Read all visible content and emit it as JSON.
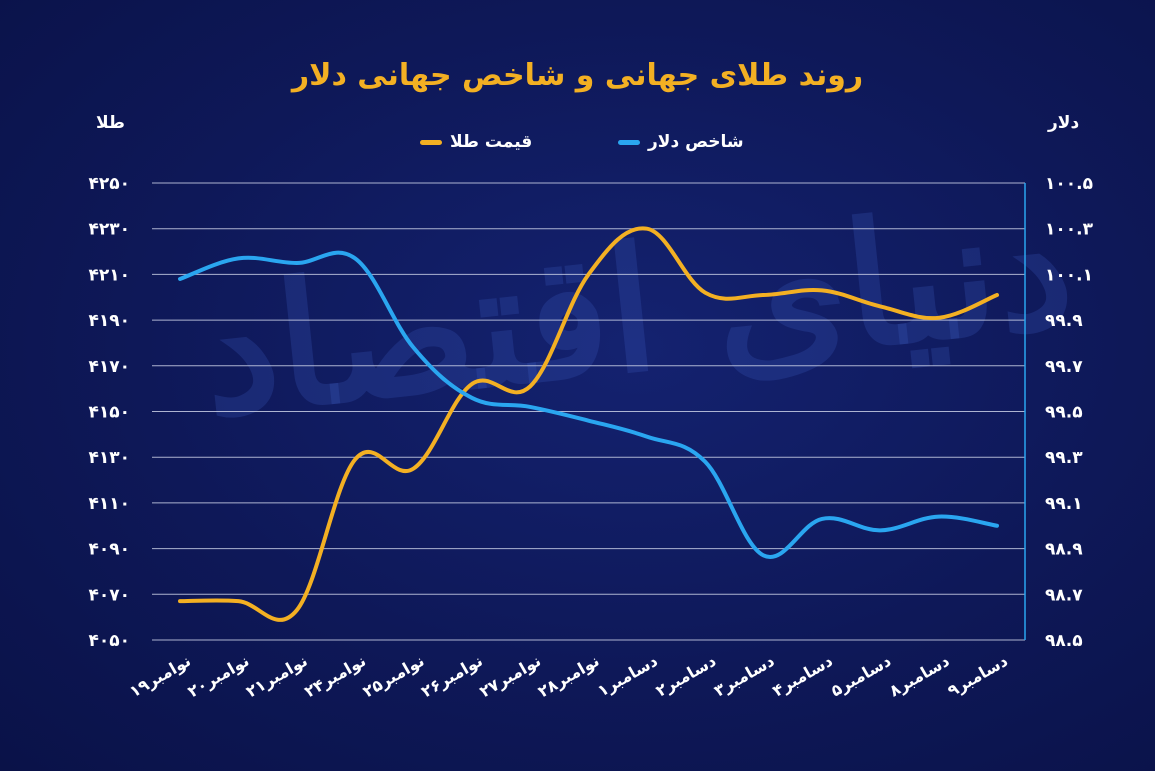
{
  "chart_data": {
    "type": "line",
    "title": "روند طلای جهانی و شاخص جهانی دلار",
    "left_axis_label": "طلا",
    "right_axis_label": "دلار",
    "categories": [
      "۱۹نوامبر",
      "۲۰نوامبر",
      "۲۱نوامبر",
      "۲۴نوامبر",
      "۲۵نوامبر",
      "۲۶نوامبر",
      "۲۷نوامبر",
      "۲۸نوامبر",
      "۱دسامبر",
      "۲دسامبر",
      "۳دسامبر",
      "۴دسامبر",
      "۵دسامبر",
      "۸دسامبر",
      "۹دسامبر"
    ],
    "left_axis": {
      "ylim": [
        4050,
        4250
      ],
      "ticks": [
        4050,
        4070,
        4090,
        4110,
        4130,
        4150,
        4170,
        4190,
        4210,
        4230,
        4250
      ],
      "tick_labels": [
        "۴۰۵۰",
        "۴۰۷۰",
        "۴۰۹۰",
        "۴۱۱۰",
        "۴۱۳۰",
        "۴۱۵۰",
        "۴۱۷۰",
        "۴۱۹۰",
        "۴۲۱۰",
        "۴۲۳۰",
        "۴۲۵۰"
      ]
    },
    "right_axis": {
      "ylim": [
        98.5,
        100.5
      ],
      "ticks": [
        98.5,
        98.7,
        98.9,
        99.1,
        99.3,
        99.5,
        99.7,
        99.9,
        100.1,
        100.3,
        100.5
      ],
      "tick_labels": [
        "۹۸.۵",
        "۹۸.۷",
        "۹۸.۹",
        "۹۹.۱",
        "۹۹.۳",
        "۹۹.۵",
        "۹۹.۷",
        "۹۹.۹",
        "۱۰۰.۱",
        "۱۰۰.۳",
        "۱۰۰.۵"
      ]
    },
    "series": [
      {
        "name": "قیمت طلا",
        "axis": "left",
        "color": "#f3b023",
        "values": [
          4067,
          4067,
          4063,
          4129,
          4125,
          4162,
          4161,
          4210,
          4230,
          4202,
          4201,
          4203,
          4196,
          4191,
          4201
        ]
      },
      {
        "name": "شاخص دلار",
        "axis": "right",
        "color": "#2aa6f0",
        "values": [
          100.08,
          100.17,
          100.15,
          100.17,
          99.78,
          99.56,
          99.52,
          99.46,
          99.39,
          99.28,
          98.87,
          99.03,
          98.98,
          99.04,
          99.0
        ]
      }
    ],
    "grid": true,
    "legend_placement": "top-center"
  },
  "watermark_text": "دنیای اقتصاد"
}
